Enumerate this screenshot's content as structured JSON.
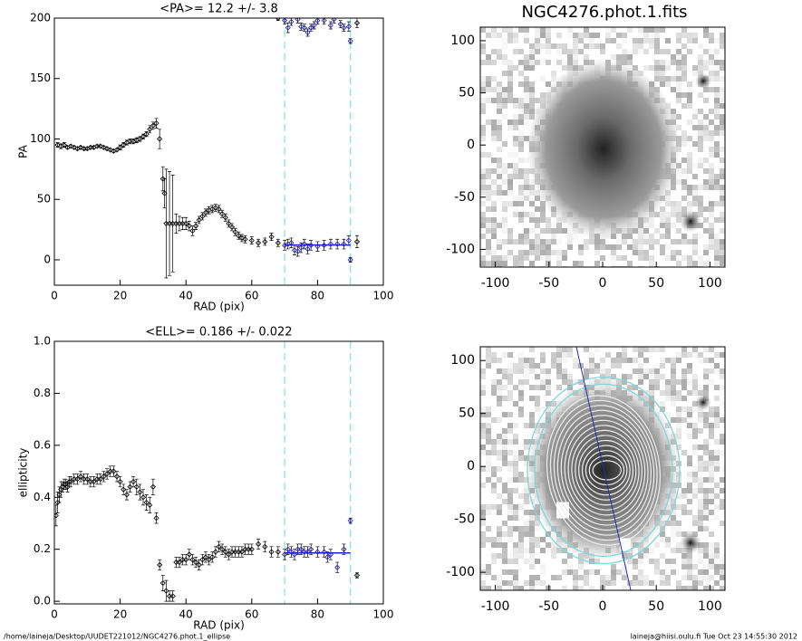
{
  "chart_data": [
    {
      "type": "scatter",
      "title": "<PA>=  12.2 +/-   3.8",
      "xlabel": "RAD (pix)",
      "ylabel": "PA",
      "xlim": [
        0,
        100
      ],
      "ylim": [
        -21,
        200
      ],
      "xticks": [
        0,
        20,
        40,
        60,
        80,
        100
      ],
      "yticks": [
        0,
        50,
        100,
        150,
        200
      ],
      "vlines": [
        70,
        90
      ],
      "fit_value": 12.2,
      "color": "#000000",
      "fit_color": "#2020c0",
      "vline_color": "#7fe0e0",
      "x": [
        1,
        2,
        3,
        4,
        5,
        6,
        7,
        8,
        9,
        10,
        11,
        12,
        13,
        14,
        15,
        16,
        17,
        18,
        19,
        20,
        21,
        22,
        23,
        24,
        25,
        26,
        27,
        28,
        29,
        30,
        31,
        32,
        33,
        33.5,
        34,
        35,
        36,
        37,
        38,
        39,
        40,
        41,
        42,
        43,
        44,
        45,
        46,
        47,
        48,
        49,
        50,
        51,
        52,
        53,
        54,
        55,
        56,
        57,
        58,
        60,
        62,
        64,
        66,
        68,
        70,
        71,
        72,
        73,
        74,
        75,
        76,
        77,
        78,
        80,
        82,
        84,
        86,
        88,
        89.5,
        90,
        92,
        68,
        70,
        71,
        72,
        74,
        75,
        76,
        77,
        78,
        79,
        80,
        82,
        84,
        85,
        87,
        88,
        89.5,
        90,
        92
      ],
      "values": [
        95,
        94,
        95,
        93,
        94,
        93,
        92,
        93,
        92,
        92,
        93,
        93,
        94,
        94,
        93,
        92,
        91,
        90,
        91,
        93,
        95,
        97,
        98,
        98,
        99,
        100,
        102,
        104,
        108,
        111,
        113,
        100,
        67,
        55,
        30,
        30,
        30,
        30,
        30,
        30,
        30,
        28,
        24,
        28,
        33,
        36,
        39,
        41,
        42,
        43,
        42,
        38,
        35,
        30,
        27,
        23,
        20,
        18,
        17,
        16,
        14,
        15,
        19,
        14,
        12,
        13,
        14,
        8,
        7,
        10,
        13,
        9,
        12,
        11,
        12,
        13,
        13,
        13,
        16,
        0,
        15,
        200,
        198,
        192,
        197,
        199,
        193,
        192,
        188,
        192,
        194,
        198,
        198,
        194,
        199,
        195,
        192,
        193,
        181,
        196
      ],
      "errors": [
        2,
        2,
        2,
        1,
        1,
        1,
        1,
        1,
        1,
        1,
        1,
        1,
        1,
        1,
        1,
        1,
        1,
        1,
        1,
        2,
        2,
        2,
        2,
        2,
        2,
        2,
        2,
        2,
        3,
        3,
        4,
        8,
        10,
        12,
        45,
        43,
        40,
        8,
        6,
        5,
        5,
        4,
        4,
        3,
        3,
        3,
        3,
        3,
        3,
        3,
        3,
        3,
        3,
        3,
        3,
        3,
        3,
        3,
        3,
        3,
        3,
        3,
        3,
        3,
        4,
        4,
        4,
        4,
        4,
        4,
        4,
        4,
        4,
        4,
        4,
        4,
        4,
        4,
        4,
        2,
        5,
        2,
        3,
        4,
        3,
        3,
        3,
        3,
        3,
        3,
        3,
        3,
        3,
        3,
        3,
        3,
        3,
        4,
        2,
        4
      ]
    },
    {
      "type": "scatter",
      "title": "<ELL>= 0.186 +/-  0.022",
      "xlabel": "RAD (pix)",
      "ylabel": "ellipticity",
      "xlim": [
        0,
        100
      ],
      "ylim": [
        -0.01,
        1.0
      ],
      "xticks": [
        0,
        20,
        40,
        60,
        80,
        100
      ],
      "yticks": [
        {
          "value": 0,
          "label": "0.0"
        },
        0.2,
        0.4,
        0.6,
        0.8,
        {
          "value": 1,
          "label": "1.0"
        }
      ],
      "vlines": [
        70,
        90
      ],
      "fit_value": 0.186,
      "color": "#000000",
      "fit_color": "#2020c0",
      "vline_color": "#7fe0e0",
      "x": [
        0.5,
        1,
        1.5,
        2,
        2.5,
        3,
        3.5,
        4,
        4.5,
        5,
        6,
        7,
        8,
        9,
        10,
        11,
        12,
        13,
        14,
        15,
        16,
        17,
        18,
        19,
        20,
        21,
        22,
        23,
        24,
        25,
        26,
        27,
        28,
        29,
        30,
        31,
        32,
        33,
        34,
        35,
        36,
        37,
        38,
        39,
        40,
        41,
        42,
        43,
        44,
        45,
        46,
        47,
        48,
        49,
        50,
        51,
        52,
        53,
        54,
        55,
        56,
        57,
        58,
        59,
        60,
        62,
        64,
        66,
        68,
        70,
        71,
        72,
        73,
        74,
        75,
        76,
        77,
        78,
        80,
        82,
        83,
        84,
        86,
        88,
        90,
        92
      ],
      "values": [
        0.33,
        0.38,
        0.41,
        0.43,
        0.44,
        0.45,
        0.45,
        0.44,
        0.46,
        0.46,
        0.47,
        0.47,
        0.48,
        0.47,
        0.47,
        0.46,
        0.46,
        0.47,
        0.47,
        0.48,
        0.49,
        0.5,
        0.5,
        0.48,
        0.46,
        0.43,
        0.41,
        0.44,
        0.46,
        0.44,
        0.42,
        0.4,
        0.38,
        0.37,
        0.44,
        0.32,
        0.14,
        0.07,
        0.04,
        0.02,
        0.02,
        0.15,
        0.15,
        0.16,
        0.16,
        0.18,
        0.16,
        0.15,
        0.14,
        0.16,
        0.17,
        0.16,
        0.17,
        0.19,
        0.21,
        0.2,
        0.19,
        0.18,
        0.19,
        0.19,
        0.19,
        0.19,
        0.2,
        0.2,
        0.2,
        0.22,
        0.21,
        0.19,
        0.19,
        0.18,
        0.2,
        0.19,
        0.18,
        0.2,
        0.2,
        0.19,
        0.19,
        0.2,
        0.19,
        0.19,
        0.17,
        0.18,
        0.13,
        0.2,
        0.31,
        0.1
      ],
      "errors": [
        0.04,
        0.04,
        0.03,
        0.03,
        0.02,
        0.02,
        0.02,
        0.02,
        0.02,
        0.02,
        0.02,
        0.02,
        0.02,
        0.02,
        0.02,
        0.02,
        0.02,
        0.02,
        0.02,
        0.02,
        0.02,
        0.02,
        0.02,
        0.02,
        0.02,
        0.02,
        0.02,
        0.02,
        0.02,
        0.03,
        0.03,
        0.03,
        0.03,
        0.03,
        0.03,
        0.02,
        0.02,
        0.03,
        0.04,
        0.02,
        0.02,
        0.02,
        0.02,
        0.02,
        0.02,
        0.02,
        0.02,
        0.02,
        0.02,
        0.02,
        0.02,
        0.02,
        0.02,
        0.02,
        0.02,
        0.02,
        0.02,
        0.02,
        0.02,
        0.02,
        0.02,
        0.02,
        0.02,
        0.02,
        0.02,
        0.02,
        0.02,
        0.02,
        0.02,
        0.02,
        0.02,
        0.02,
        0.02,
        0.02,
        0.02,
        0.02,
        0.02,
        0.02,
        0.02,
        0.02,
        0.02,
        0.02,
        0.02,
        0.02,
        0.01,
        0.01
      ]
    },
    {
      "type": "image",
      "title": "NGC4276.phot.1.fits",
      "xlim": [
        -114,
        114
      ],
      "ylim": [
        -117,
        113
      ],
      "xticks": [
        -100,
        -50,
        0,
        50,
        100
      ],
      "yticks": [
        -100,
        -50,
        0,
        50,
        100
      ]
    },
    {
      "type": "image",
      "overlay": true,
      "xlim": [
        -114,
        114
      ],
      "ylim": [
        -117,
        113
      ],
      "xticks": [
        -100,
        -50,
        0,
        50,
        100
      ],
      "yticks": [
        -100,
        -50,
        0,
        50,
        100
      ]
    }
  ],
  "footer": {
    "left": "/home/laineja/Desktop/UUDET221012/NGC4276.phot.1_ellipse",
    "right": "laineja@hiisi.oulu.fi  Tue Oct 23 14:55:30 2012"
  }
}
